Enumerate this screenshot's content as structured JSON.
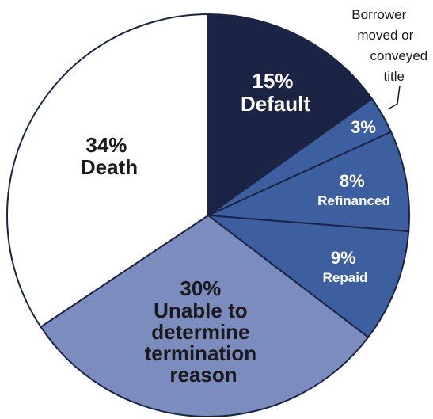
{
  "chart_data": {
    "type": "pie",
    "slices": [
      {
        "label": "Default",
        "value": 15,
        "pct_label": "15%",
        "color": "#1b2445",
        "text_color": "#ffffff"
      },
      {
        "label": "Borrower moved or conveyed title",
        "value": 3,
        "pct_label": "3%",
        "color": "#3d5f9f",
        "text_color": "#ffffff"
      },
      {
        "label": "Refinanced",
        "value": 8,
        "pct_label": "8%",
        "color": "#3d5f9f",
        "text_color": "#ffffff"
      },
      {
        "label": "Repaid",
        "value": 9,
        "pct_label": "9%",
        "color": "#3d5f9f",
        "text_color": "#ffffff"
      },
      {
        "label": "Unable to determine termination reason",
        "value": 30,
        "pct_label": "30%",
        "color": "#7b8cbf",
        "text_color": "#1a1a1a"
      },
      {
        "label": "Death",
        "value": 34,
        "pct_label": "34%",
        "color": "#ffffff",
        "text_color": "#1a1a1a"
      }
    ],
    "callout": {
      "lines": [
        "Borrower",
        "moved or",
        "conveyed",
        "title"
      ]
    },
    "labels": {
      "default": [
        "15%",
        "Default"
      ],
      "moved": [
        "3%"
      ],
      "refinanced": [
        "8%",
        "Refinanced"
      ],
      "repaid": [
        "9%",
        "Repaid"
      ],
      "unable": [
        "30%",
        "Unable to",
        "determine",
        "termination",
        "reason"
      ],
      "death": [
        "34%",
        "Death"
      ]
    }
  }
}
